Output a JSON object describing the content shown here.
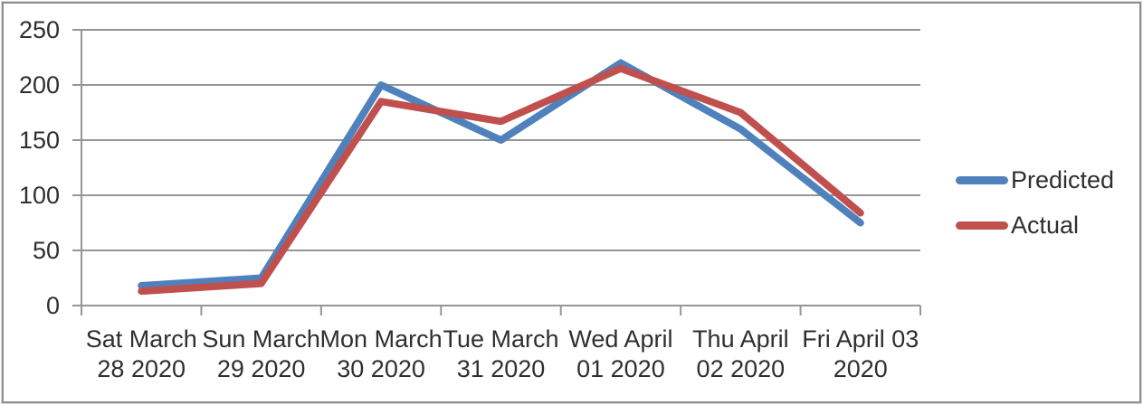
{
  "chart_data": {
    "type": "line",
    "title": "",
    "xlabel": "",
    "ylabel": "",
    "categories": [
      "Sat March 28 2020",
      "Sun March 29 2020",
      "Mon March 30 2020",
      "Tue March 31 2020",
      "Wed April 01 2020",
      "Thu April 02 2020",
      "Fri April 03 2020"
    ],
    "category_label_lines": [
      [
        "Sat March",
        "28 2020"
      ],
      [
        "Sun March",
        "29 2020"
      ],
      [
        "Mon March",
        "30 2020"
      ],
      [
        "Tue March",
        "31 2020"
      ],
      [
        "Wed April",
        "01 2020"
      ],
      [
        "Thu April",
        "02 2020"
      ],
      [
        "Fri April 03",
        "2020"
      ]
    ],
    "series": [
      {
        "name": "Predicted",
        "color": "#4f81bd",
        "values": [
          18,
          25,
          200,
          150,
          220,
          160,
          75
        ]
      },
      {
        "name": "Actual",
        "color": "#c0504d",
        "values": [
          13,
          20,
          185,
          167,
          215,
          175,
          84
        ]
      }
    ],
    "ylim": [
      0,
      250
    ],
    "yticks": [
      0,
      50,
      100,
      150,
      200,
      250
    ],
    "grid": true,
    "legend_position": "right"
  },
  "colors": {
    "gridline": "#969696",
    "axis": "#969696",
    "tick_text": "#2f2f2f",
    "frame_border": "#8f8f8f",
    "background": "#ffffff"
  }
}
